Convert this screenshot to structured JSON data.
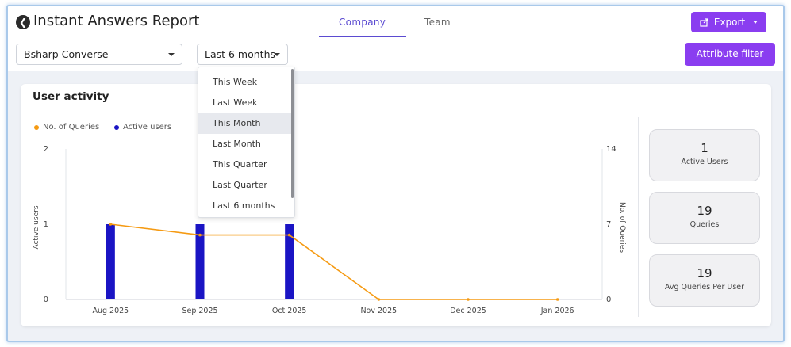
{
  "header": {
    "title": "Instant Answers Report",
    "tabs": [
      {
        "label": "Company",
        "active": true
      },
      {
        "label": "Team",
        "active": false
      }
    ],
    "export_label": "Export"
  },
  "filters": {
    "company": "Bsharp Converse",
    "period": "Last 6 months",
    "attribute_filter_label": "Attribute filter"
  },
  "period_dropdown": {
    "options": [
      "This Week",
      "Last Week",
      "This Month",
      "Last Month",
      "This Quarter",
      "Last Quarter",
      "Last 6 months"
    ],
    "highlighted": "This Month"
  },
  "card": {
    "title": "User activity"
  },
  "legend": {
    "queries": "No. of Queries",
    "active_users": "Active users"
  },
  "stats": [
    {
      "value": "1",
      "label": "Active Users"
    },
    {
      "value": "19",
      "label": "Queries"
    },
    {
      "value": "19",
      "label": "Avg Queries Per User"
    }
  ],
  "colors": {
    "accent": "#8a3df0",
    "tab_active": "#5b4bd1",
    "bars": "#1a14c4",
    "line": "#f59a12"
  },
  "chart_data": {
    "type": "bar",
    "categories": [
      "Aug 2025",
      "Sep 2025",
      "Oct 2025",
      "Nov 2025",
      "Dec 2025",
      "Jan 2026"
    ],
    "series": [
      {
        "name": "Active users",
        "type": "bar",
        "axis": "left",
        "values": [
          1,
          1,
          1,
          0,
          0,
          0
        ]
      },
      {
        "name": "No. of Queries",
        "type": "line",
        "axis": "right",
        "values": [
          7,
          6,
          6,
          0,
          0,
          0
        ]
      }
    ],
    "ylabel_left": "Active users",
    "ylabel_right": "No. of Queries",
    "ylim_left": [
      0,
      2
    ],
    "ylim_right": [
      0,
      14
    ],
    "yticks_left": [
      "0",
      "1",
      "2"
    ],
    "yticks_right": [
      "0",
      "7",
      "14"
    ],
    "legend_position": "top-left",
    "grid": false
  }
}
